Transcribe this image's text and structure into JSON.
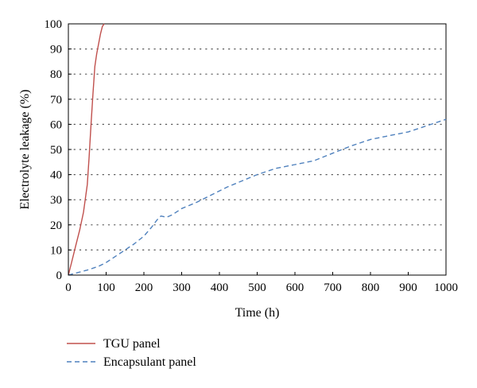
{
  "chart_data": {
    "type": "line",
    "title": "",
    "xlabel": "Time (h)",
    "ylabel": "Electrolyte leakage (%)",
    "xlim": [
      0,
      1000
    ],
    "ylim": [
      0,
      100
    ],
    "xticks": [
      0,
      100,
      200,
      300,
      400,
      500,
      600,
      700,
      800,
      900,
      1000
    ],
    "yticks": [
      0,
      10,
      20,
      30,
      40,
      50,
      60,
      70,
      80,
      90,
      100
    ],
    "grid": "horizontal dotted",
    "legend_position": "bottom-left, below plot",
    "series": [
      {
        "name": "TGU panel",
        "color": "#c0504d",
        "dash": "solid",
        "x": [
          0,
          10,
          20,
          30,
          40,
          50,
          55,
          60,
          65,
          70,
          75,
          80,
          85,
          90,
          95
        ],
        "y": [
          0,
          6,
          12,
          18,
          25,
          36,
          47,
          60,
          72,
          83,
          88,
          92,
          96,
          99,
          100
        ]
      },
      {
        "name": "Encapsulant panel",
        "color": "#4f81bd",
        "dash": "dashed",
        "x": [
          0,
          25,
          50,
          80,
          100,
          125,
          150,
          175,
          200,
          220,
          235,
          245,
          260,
          275,
          300,
          340,
          380,
          420,
          460,
          500,
          550,
          600,
          650,
          700,
          750,
          800,
          850,
          900,
          950,
          1000
        ],
        "y": [
          0,
          1,
          2,
          3.5,
          5,
          7.5,
          10,
          12.5,
          15.5,
          19,
          22,
          23.5,
          23,
          24,
          26.5,
          29,
          32,
          35,
          37.5,
          40,
          42.5,
          44,
          45.5,
          48.5,
          51.5,
          54,
          55.5,
          57,
          59.5,
          62
        ]
      }
    ]
  }
}
